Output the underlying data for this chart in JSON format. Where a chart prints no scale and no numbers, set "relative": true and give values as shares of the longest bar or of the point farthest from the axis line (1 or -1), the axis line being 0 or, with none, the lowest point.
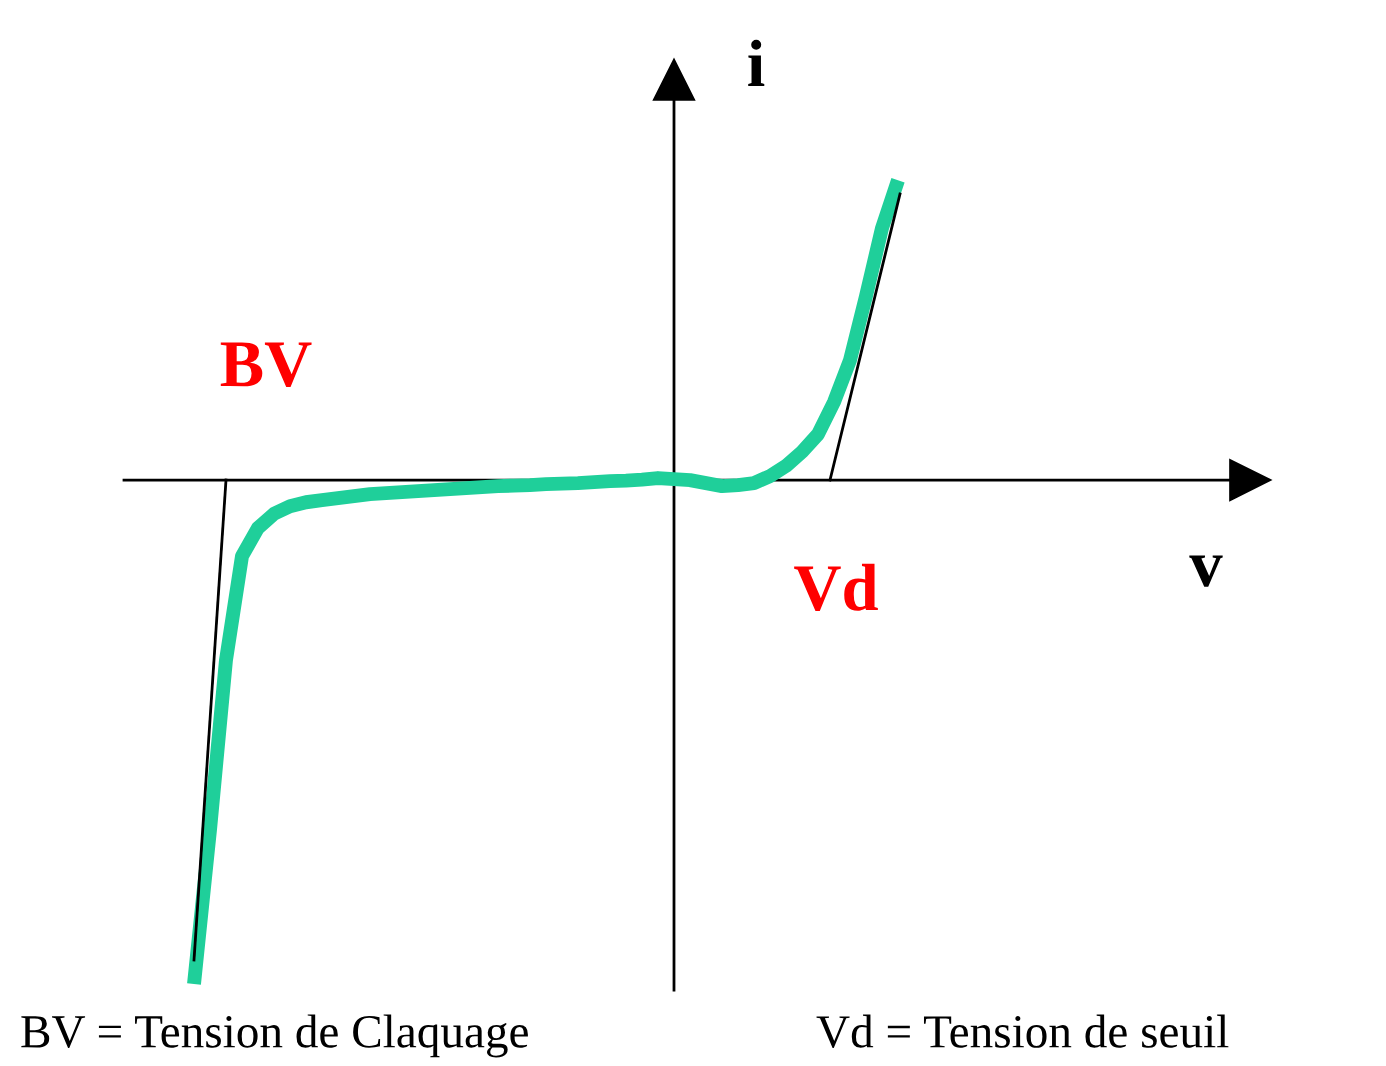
{
  "chart_data": {
    "type": "line",
    "relative": true,
    "xlabel": "v",
    "ylabel": "i",
    "categories": [
      null,
      null,
      null,
      null,
      null,
      null,
      null,
      null,
      null,
      null,
      null,
      null,
      null,
      null,
      null,
      null,
      null,
      null,
      null,
      null,
      null,
      null,
      null,
      null,
      null,
      null,
      null,
      null,
      null,
      null,
      null,
      null,
      null,
      null,
      null,
      null,
      null,
      null,
      null,
      null,
      null,
      null,
      null,
      null,
      null
    ],
    "series": [
      {
        "color": "#1fcf9a",
        "values": [
          -1.0,
          -0.694,
          -0.357,
          -0.151,
          -0.095,
          -0.067,
          -0.052,
          -0.044,
          -0.04,
          -0.036,
          -0.032,
          -0.028,
          -0.026,
          -0.024,
          -0.022,
          -0.02,
          -0.018,
          -0.016,
          -0.014,
          -0.012,
          -0.011,
          -0.01,
          -0.008,
          -0.007,
          -0.006,
          -0.004,
          -0.002,
          -0.001,
          0.001,
          0.004,
          0.002,
          0.0,
          -0.006,
          -0.012,
          -0.01,
          -0.006,
          0.008,
          0.028,
          0.056,
          0.091,
          0.155,
          0.238,
          0.365,
          0.5,
          0.595
        ]
      }
    ],
    "annotations": [
      "BV",
      "Vd",
      "BV = Tension de Claquage",
      "Vd = Tension de seuil"
    ],
    "legend": false,
    "marker": "none",
    "line_style": "solid"
  }
}
